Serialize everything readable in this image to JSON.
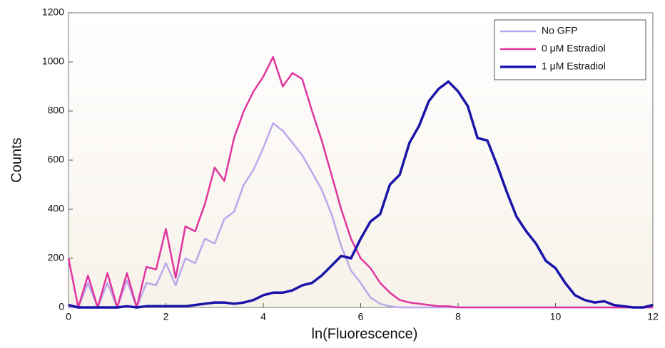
{
  "chart_data": {
    "type": "line",
    "xlabel": "ln(Fluorescence)",
    "ylabel": "Counts",
    "x": [
      0,
      0.2,
      0.4,
      0.6,
      0.8,
      1,
      1.2,
      1.4,
      1.6,
      1.8,
      2,
      2.2,
      2.4,
      2.6,
      2.8,
      3,
      3.2,
      3.4,
      3.6,
      3.8,
      4,
      4.2,
      4.4,
      4.6,
      4.8,
      5,
      5.2,
      5.4,
      5.6,
      5.8,
      6,
      6.2,
      6.4,
      6.6,
      6.8,
      7,
      7.2,
      7.4,
      7.6,
      7.8,
      8,
      8.2,
      8.4,
      8.6,
      8.8,
      9,
      9.2,
      9.4,
      9.6,
      9.8,
      10,
      10.2,
      10.4,
      10.6,
      10.8,
      11,
      11.2,
      11.4,
      11.6,
      11.8,
      12
    ],
    "series": [
      {
        "name": "No GFP",
        "color": "#b9a9ea",
        "values": [
          0,
          0,
          100,
          0,
          100,
          0,
          110,
          0,
          100,
          90,
          180,
          90,
          200,
          180,
          280,
          260,
          360,
          390,
          500,
          560,
          650,
          750,
          720,
          670,
          620,
          550,
          480,
          380,
          250,
          150,
          100,
          40,
          15,
          5,
          0,
          0,
          0,
          0,
          0,
          0,
          0,
          0,
          0,
          0,
          0,
          0,
          0,
          0,
          0,
          0,
          0,
          0,
          0,
          0,
          0,
          0,
          0,
          0,
          0,
          0,
          0
        ]
      },
      {
        "name": "0 μM Estradiol",
        "color": "#e0359e",
        "values": [
          200,
          0,
          130,
          0,
          140,
          0,
          140,
          0,
          165,
          155,
          320,
          120,
          330,
          310,
          420,
          570,
          515,
          690,
          800,
          880,
          940,
          1020,
          900,
          955,
          930,
          800,
          680,
          540,
          400,
          280,
          200,
          160,
          100,
          60,
          30,
          20,
          15,
          10,
          5,
          5,
          0,
          0,
          0,
          0,
          0,
          0,
          0,
          0,
          0,
          0,
          0,
          0,
          0,
          0,
          0,
          0,
          0,
          0,
          0,
          0,
          0
        ]
      },
      {
        "name": "1 μM Estradiol",
        "color": "#1a14a8",
        "values": [
          10,
          0,
          0,
          0,
          0,
          0,
          5,
          0,
          5,
          5,
          5,
          5,
          5,
          10,
          15,
          20,
          20,
          15,
          20,
          30,
          50,
          60,
          60,
          70,
          90,
          100,
          130,
          170,
          210,
          200,
          280,
          350,
          380,
          500,
          540,
          670,
          740,
          840,
          890,
          920,
          880,
          820,
          690,
          680,
          580,
          470,
          370,
          310,
          260,
          190,
          160,
          100,
          50,
          30,
          20,
          25,
          10,
          5,
          0,
          0,
          10
        ]
      }
    ],
    "xlim": [
      0,
      12
    ],
    "xticks": [
      0,
      2,
      4,
      6,
      8,
      10,
      12
    ],
    "ylim": [
      0,
      1200
    ],
    "yticks": [
      0,
      200,
      400,
      600,
      800,
      1000,
      1200
    ],
    "legend": "upper right"
  }
}
